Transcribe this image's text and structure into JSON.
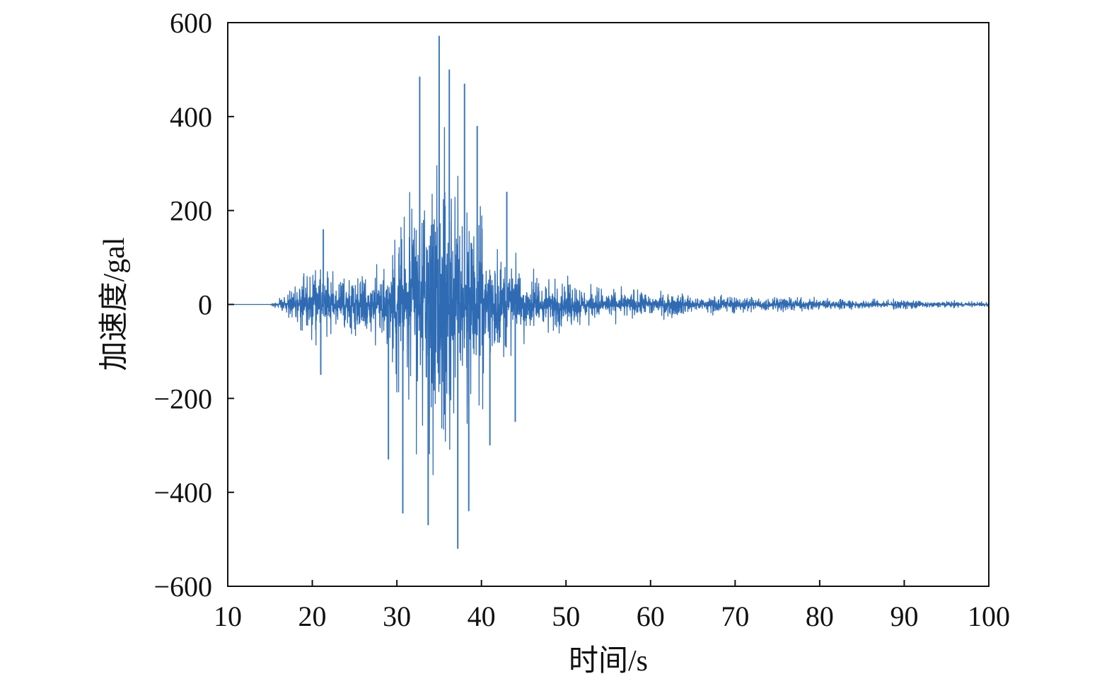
{
  "chart_data": {
    "type": "line",
    "title": "",
    "xlabel": "时间/s",
    "ylabel": "加速度/gal",
    "xlim": [
      10,
      100
    ],
    "ylim": [
      -600,
      600
    ],
    "x_ticks": [
      10,
      20,
      30,
      40,
      50,
      60,
      70,
      80,
      90,
      100
    ],
    "y_ticks": [
      600,
      400,
      200,
      0,
      -200,
      -400,
      -600
    ],
    "x_tick_labels": [
      "10",
      "20",
      "30",
      "40",
      "50",
      "60",
      "70",
      "80",
      "90",
      "100"
    ],
    "y_tick_labels": [
      "600",
      "400",
      "200",
      "0",
      "−200",
      "−400",
      "−600"
    ],
    "grid": false,
    "legend": "none",
    "series": [
      {
        "color": "#2f6bb3",
        "envelope_x": [
          10,
          15,
          16,
          18,
          20,
          22,
          24,
          26,
          28,
          30,
          32,
          34,
          35,
          36,
          38,
          40,
          42,
          44,
          46,
          48,
          50,
          55,
          60,
          65,
          70,
          75,
          80,
          85,
          90,
          95,
          100
        ],
        "envelope_y": [
          0,
          0,
          20,
          70,
          120,
          120,
          100,
          100,
          150,
          300,
          440,
          500,
          570,
          490,
          400,
          300,
          200,
          160,
          110,
          90,
          80,
          55,
          45,
          35,
          30,
          25,
          20,
          18,
          15,
          12,
          10
        ],
        "peaks": [
          {
            "x": 35.0,
            "y": 572
          },
          {
            "x": 37.2,
            "y": -520
          },
          {
            "x": 36.2,
            "y": 500
          },
          {
            "x": 33.7,
            "y": -470
          },
          {
            "x": 32.7,
            "y": 485
          },
          {
            "x": 30.7,
            "y": -445
          },
          {
            "x": 38.5,
            "y": -440
          },
          {
            "x": 38.0,
            "y": 470
          },
          {
            "x": 39.5,
            "y": 380
          },
          {
            "x": 29.0,
            "y": -330
          },
          {
            "x": 21.3,
            "y": 160
          },
          {
            "x": 44.0,
            "y": -250
          },
          {
            "x": 43.0,
            "y": 240
          },
          {
            "x": 21.0,
            "y": -150
          },
          {
            "x": 41.0,
            "y": -300
          }
        ]
      }
    ]
  }
}
